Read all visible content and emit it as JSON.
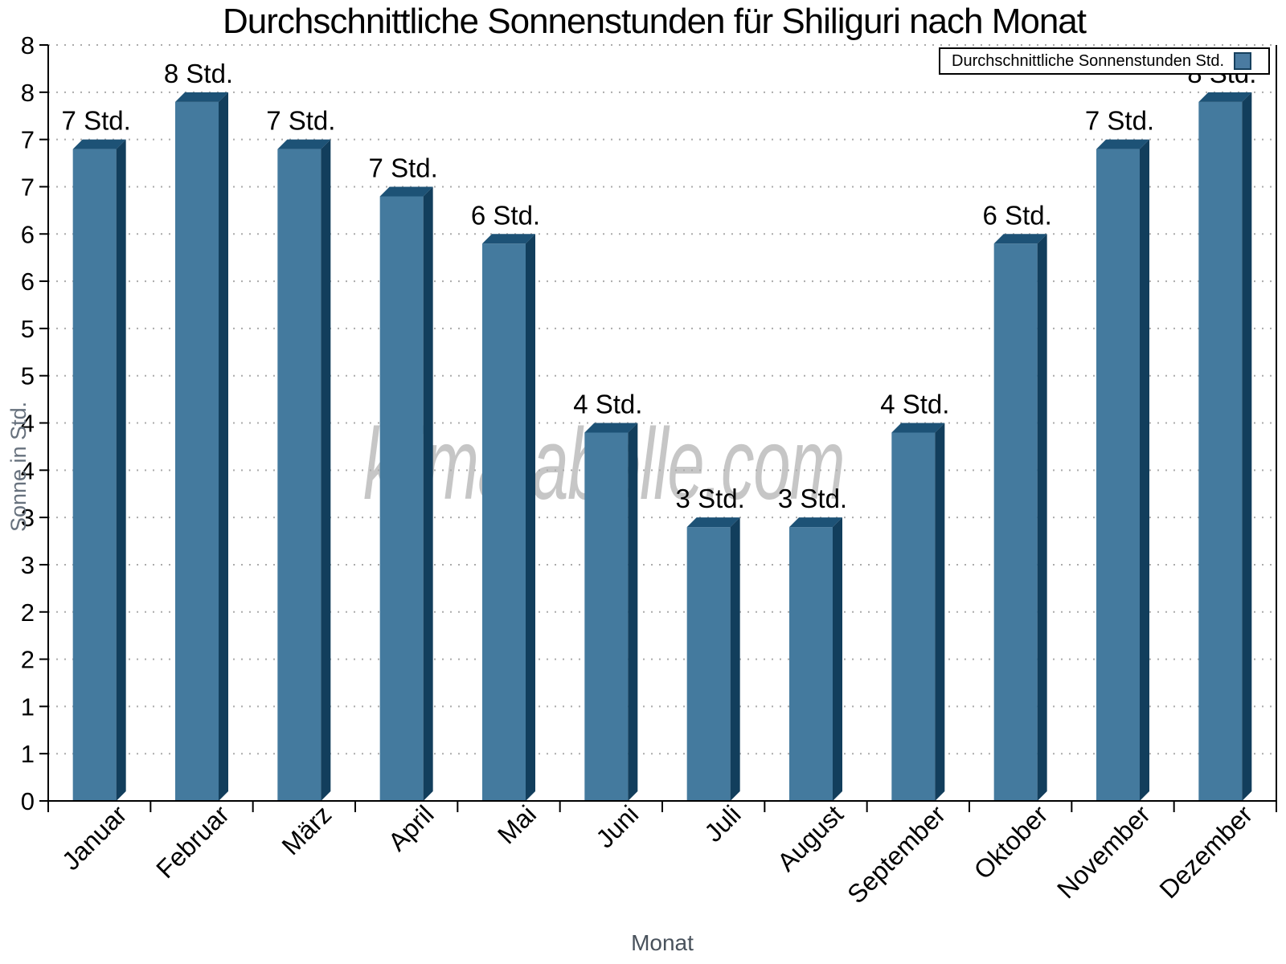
{
  "title": "Durchschnittliche Sonnenstunden für Shiliguri nach Monat",
  "watermark": "klimatabelle.com",
  "legend": {
    "label": "Durchschnittliche Sonnenstunden Std."
  },
  "colors": {
    "bar_face": "#447a9e",
    "bar_top": "#1d5276",
    "bar_side": "#123e5c",
    "legend_swatch": "#4a7ba1",
    "legend_swatch_border": "#16405e",
    "grid": "#ababab",
    "axis": "#000000",
    "tick_text": "#000000",
    "x_axis_title": "#49525c",
    "y_axis_title": "#67717d",
    "watermark": "#bdbdbd"
  },
  "chart_data": {
    "type": "bar",
    "title": "Durchschnittliche Sonnenstunden für Shiliguri nach Monat",
    "xlabel": "Monat",
    "ylabel": "Sonne in Std.",
    "categories": [
      "Januar",
      "Februar",
      "März",
      "April",
      "Mai",
      "Juni",
      "Juli",
      "August",
      "September",
      "Oktober",
      "November",
      "Dezember"
    ],
    "values": [
      7,
      8,
      7,
      7,
      6,
      4,
      3,
      3,
      4,
      6,
      7,
      8
    ],
    "bar_heights": [
      7.0,
      7.5,
      7.0,
      6.5,
      6.0,
      4.0,
      3.0,
      3.0,
      4.0,
      6.0,
      7.0,
      7.5
    ],
    "value_suffix": " Std.",
    "ylim": [
      0,
      8
    ],
    "ytick_step": 0.5,
    "ytick_labels_bottom_to_top": [
      "0",
      "1",
      "1",
      "2",
      "2",
      "3",
      "3",
      "4",
      "4",
      "5",
      "5",
      "6",
      "6",
      "7",
      "7",
      "8",
      "8"
    ],
    "grid": "dotted-horizontal",
    "legend_position": "top-right",
    "legend_label": "Durchschnittliche Sonnenstunden Std."
  }
}
